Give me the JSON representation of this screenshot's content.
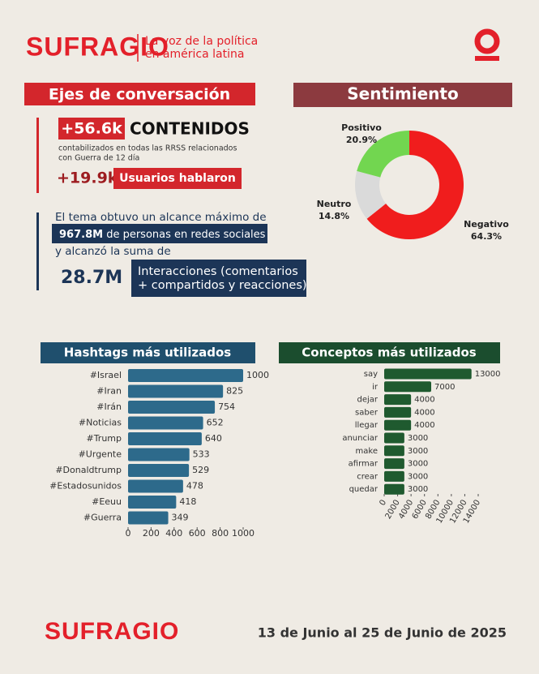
{
  "header": {
    "logo": "SUFRAGIO",
    "tagline": [
      "La voz de la política",
      "en américa latina"
    ]
  },
  "ejes": {
    "title": "Ejes de conversación",
    "contenidos_value": "+56.6k",
    "contenidos_label": "CONTENIDOS",
    "contenidos_note": [
      "contabilizados en todas las RRSS relacionados",
      "con Guerra de 12 día"
    ],
    "usuarios_value": "+19.9k",
    "usuarios_label": "Usuarios hablaron"
  },
  "alcance": {
    "line1": "El tema obtuvo un alcance máximo de",
    "value": "967.8M",
    "line2": "de personas en redes sociales",
    "line3": "y alcanzó la suma de",
    "interacciones_value": "28.7M",
    "interacciones_label": [
      "Interacciones (comentarios",
      "+ compartidos y reacciones)"
    ]
  },
  "chart_data": [
    {
      "type": "pie",
      "title": "Sentimiento",
      "categories": [
        "Negativo",
        "Neutro",
        "Positivo"
      ],
      "values": [
        64.3,
        14.8,
        20.9
      ],
      "value_labels": [
        "64.3%",
        "14.8%",
        "20.9%"
      ],
      "colors": [
        "#f01d1d",
        "#dadada",
        "#72d650"
      ]
    },
    {
      "type": "barh",
      "title": "Hashtags más utilizados",
      "categories": [
        "#Israel",
        "#Iran",
        "#Irán",
        "#Noticias",
        "#Trump",
        "#Urgente",
        "#Donaldtrump",
        "#Estadosunidos",
        "#Eeuu",
        "#Guerra"
      ],
      "values": [
        1000,
        825,
        754,
        652,
        640,
        533,
        529,
        478,
        418,
        349
      ],
      "color": "#2d6a8b",
      "xlim": [
        0,
        1000
      ],
      "xticks": [
        0,
        200,
        400,
        600,
        800,
        1000
      ]
    },
    {
      "type": "barh",
      "title": "Conceptos más utilizados",
      "categories": [
        "say",
        "ir",
        "dejar",
        "saber",
        "llegar",
        "anunciar",
        "make",
        "afirmar",
        "crear",
        "quedar"
      ],
      "values": [
        13000,
        7000,
        4000,
        4000,
        4000,
        3000,
        3000,
        3000,
        3000,
        3000
      ],
      "color": "#1f5a2f",
      "xlim": [
        0,
        14000
      ],
      "xticks": [
        0,
        2000,
        4000,
        6000,
        8000,
        10000,
        12000,
        14000
      ]
    }
  ],
  "footer": {
    "logo": "SUFRAGIO",
    "dates": "13 de Junio al 25 de Junio de 2025"
  }
}
